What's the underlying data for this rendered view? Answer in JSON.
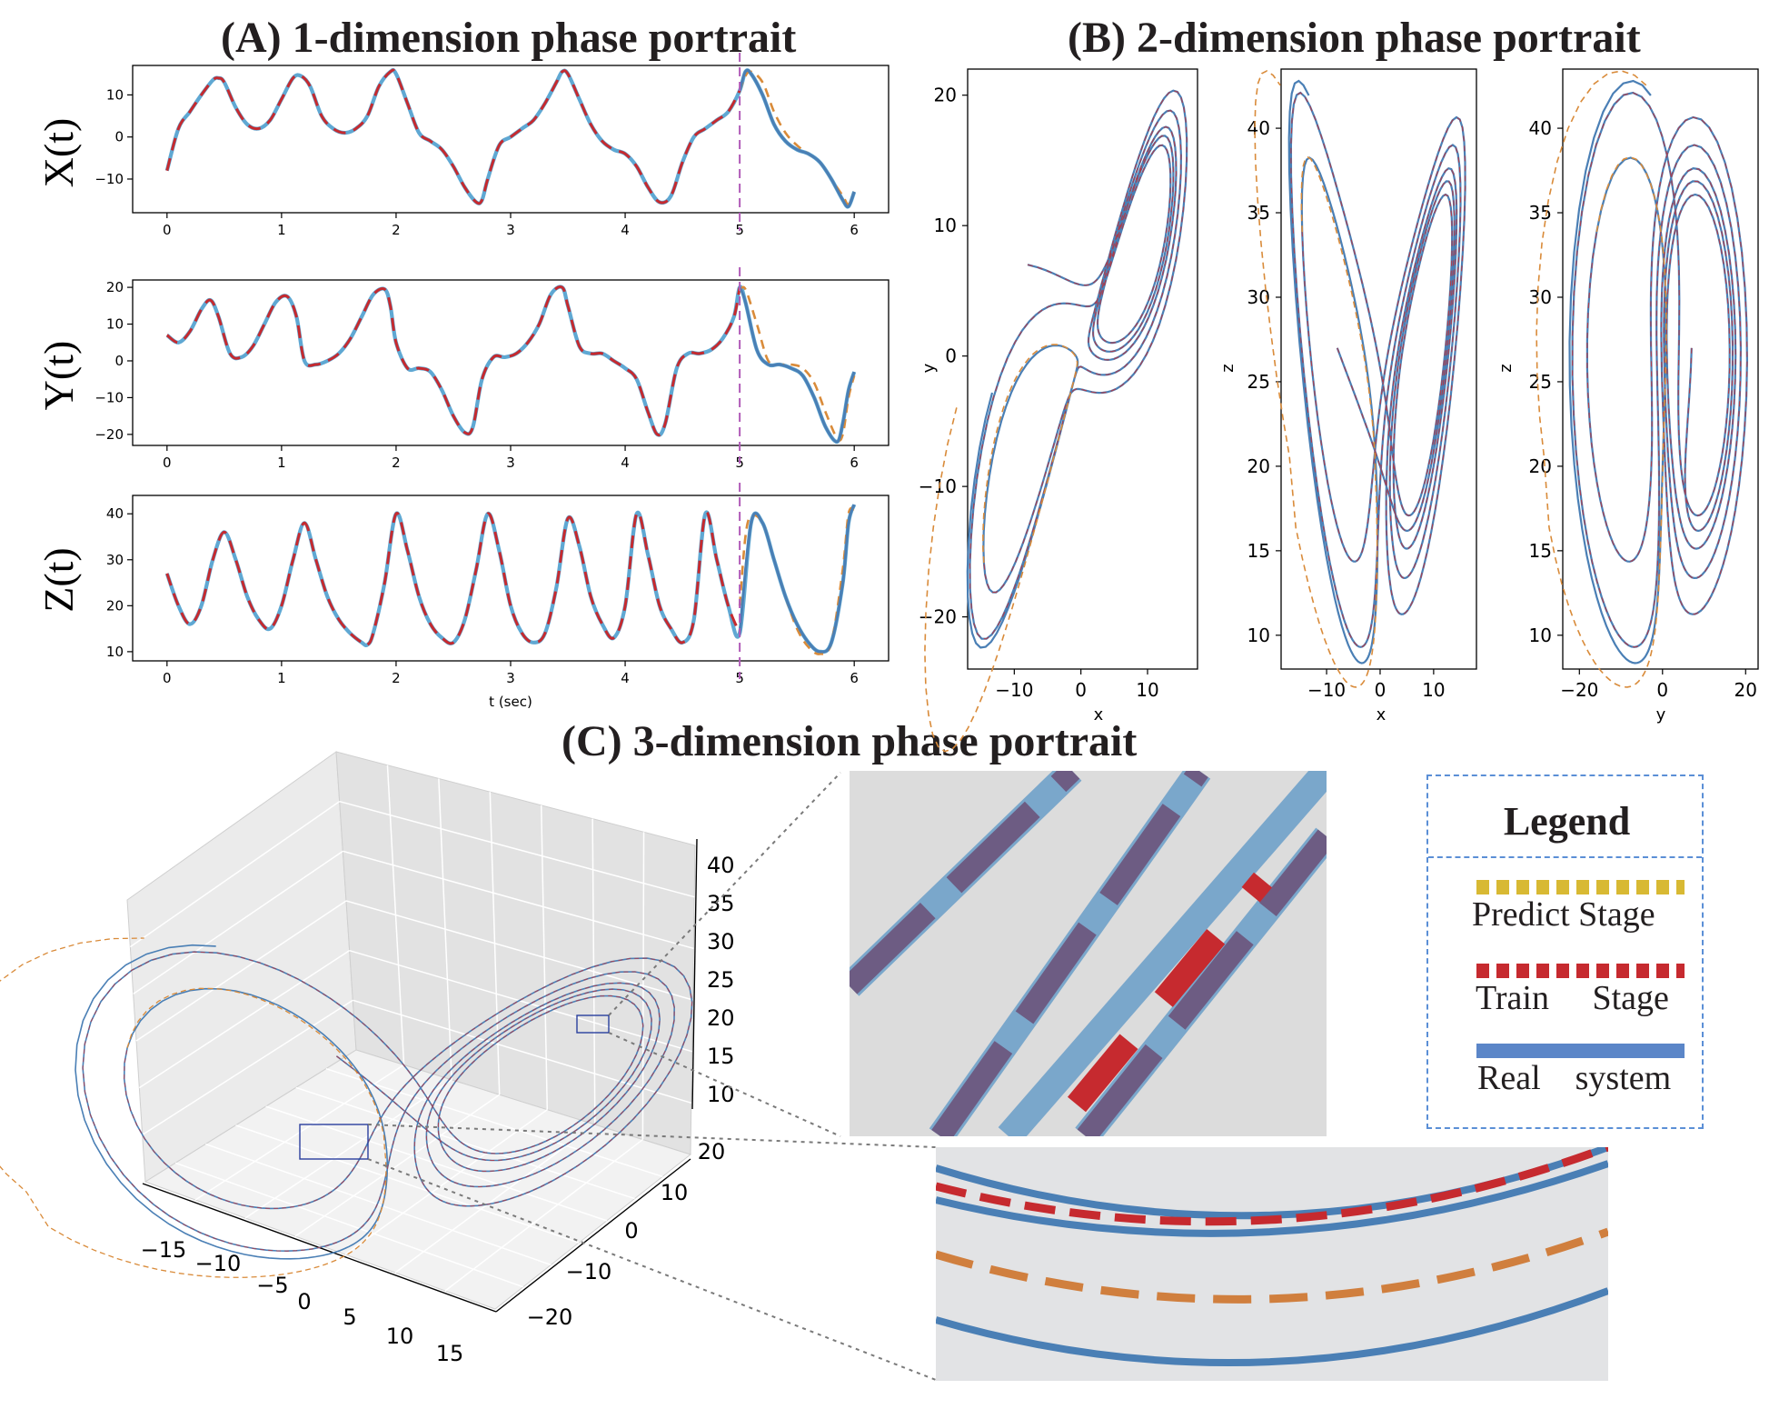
{
  "titles": {
    "a": "(A) 1-dimension phase portrait",
    "b": "(B) 2-dimension phase portrait",
    "c": "(C) 3-dimension phase portrait"
  },
  "colors": {
    "real": "#4a7fb5",
    "real_light": "#5fa8d3",
    "train": "#c62a2f",
    "predict": "#d98b3a",
    "boundary": "#b05ab8",
    "legend_predict": "#d8b933",
    "legend_real": "#5b86c8"
  },
  "chart_data": [
    {
      "id": "x_time",
      "type": "line",
      "ylabel": "X(t)",
      "xlabel": "",
      "xlim": [
        -0.3,
        6.3
      ],
      "ylim": [
        -18,
        17
      ],
      "xticks": [
        "0",
        "1",
        "2",
        "3",
        "4",
        "5",
        "6"
      ],
      "yticks": [
        "10",
        "0",
        "−10"
      ],
      "train_predict_boundary": 5,
      "series": [
        {
          "role": "real",
          "x": [
            0,
            0.1,
            0.2,
            0.3,
            0.4,
            0.45,
            0.5,
            0.6,
            0.7,
            0.8,
            0.9,
            1.0,
            1.1,
            1.17,
            1.25,
            1.35,
            1.45,
            1.55,
            1.65,
            1.75,
            1.85,
            1.95,
            2.0,
            2.1,
            2.2,
            2.3,
            2.4,
            2.5,
            2.6,
            2.7,
            2.75,
            2.8,
            2.9,
            3.0,
            3.1,
            3.2,
            3.3,
            3.4,
            3.45,
            3.5,
            3.6,
            3.7,
            3.8,
            3.9,
            4.0,
            4.1,
            4.2,
            4.3,
            4.4,
            4.5,
            4.6,
            4.7,
            4.8,
            4.9,
            5.0,
            5.05,
            5.1,
            5.2,
            5.3,
            5.4,
            5.5,
            5.6,
            5.7,
            5.8,
            5.9,
            5.95,
            6.0
          ],
          "y": [
            -8,
            2,
            6,
            10,
            13.5,
            14,
            13,
            7,
            3,
            2,
            4,
            9,
            14,
            14.5,
            12,
            5,
            2,
            1,
            2,
            5,
            12,
            15.5,
            15,
            8,
            1,
            -1,
            -3,
            -7,
            -12,
            -15.5,
            -15,
            -10,
            -2,
            0,
            2,
            4,
            8,
            13,
            15.5,
            15,
            9,
            3,
            -1,
            -3,
            -4,
            -7,
            -12,
            -15.5,
            -14,
            -6,
            0,
            2,
            4,
            6,
            11,
            15.5,
            15,
            10,
            3,
            -1,
            -3,
            -4,
            -6,
            -10,
            -15,
            -16.5,
            -13
          ]
        },
        {
          "role": "predict",
          "x": [
            5.0,
            5.05,
            5.1,
            5.2,
            5.3,
            5.4,
            5.5,
            5.6,
            5.7,
            5.8,
            5.9,
            5.95,
            6.0
          ],
          "y": [
            11,
            14.5,
            15.5,
            13,
            6,
            1,
            -2,
            -4,
            -6,
            -10,
            -14,
            -16,
            -13
          ]
        }
      ]
    },
    {
      "id": "y_time",
      "type": "line",
      "ylabel": "Y(t)",
      "xlabel": "",
      "xlim": [
        -0.3,
        6.3
      ],
      "ylim": [
        -23,
        22
      ],
      "xticks": [
        "0",
        "1",
        "2",
        "3",
        "4",
        "5",
        "6"
      ],
      "yticks": [
        "20",
        "10",
        "0",
        "−10",
        "−20"
      ],
      "train_predict_boundary": 5,
      "series": [
        {
          "role": "real",
          "x": [
            0,
            0.1,
            0.2,
            0.3,
            0.38,
            0.45,
            0.55,
            0.65,
            0.75,
            0.85,
            0.95,
            1.05,
            1.13,
            1.2,
            1.3,
            1.4,
            1.5,
            1.6,
            1.7,
            1.8,
            1.9,
            1.95,
            2.0,
            2.1,
            2.2,
            2.3,
            2.4,
            2.5,
            2.6,
            2.67,
            2.75,
            2.85,
            2.95,
            3.05,
            3.15,
            3.25,
            3.35,
            3.45,
            3.5,
            3.6,
            3.7,
            3.8,
            3.9,
            4.0,
            4.1,
            4.2,
            4.28,
            4.35,
            4.45,
            4.55,
            4.65,
            4.75,
            4.85,
            4.95,
            5.0,
            5.05,
            5.15,
            5.25,
            5.35,
            5.45,
            5.55,
            5.65,
            5.75,
            5.85,
            5.9,
            5.95,
            6.0
          ],
          "y": [
            7,
            5,
            8,
            14,
            16.5,
            12,
            2,
            1,
            4,
            10,
            16,
            17.5,
            12,
            0,
            -1,
            0,
            2,
            6,
            12,
            18,
            19.5,
            15,
            5,
            -2,
            -2,
            -3,
            -8,
            -15,
            -19.5,
            -18,
            -5,
            1,
            1,
            2,
            5,
            10,
            18,
            20,
            15,
            4,
            2,
            2,
            0,
            -2,
            -5,
            -14,
            -20,
            -17,
            -2,
            2,
            2,
            3,
            6,
            12,
            20,
            16,
            3,
            -1,
            -1,
            -2,
            -4,
            -10,
            -18,
            -22,
            -17,
            -8,
            -3
          ]
        },
        {
          "role": "predict",
          "x": [
            5.0,
            5.05,
            5.15,
            5.25,
            5.35,
            5.45,
            5.55,
            5.65,
            5.75,
            5.85,
            5.9,
            5.95,
            6.0
          ],
          "y": [
            19,
            19.5,
            10,
            0,
            -1,
            -1,
            -2,
            -6,
            -14,
            -21,
            -20,
            -10,
            -4
          ]
        }
      ]
    },
    {
      "id": "z_time",
      "type": "line",
      "ylabel": "Z(t)",
      "xlabel": "t (sec)",
      "xlim": [
        -0.3,
        6.3
      ],
      "ylim": [
        8,
        44
      ],
      "xticks": [
        "0",
        "1",
        "2",
        "3",
        "4",
        "5",
        "6"
      ],
      "yticks": [
        "40",
        "30",
        "20",
        "10"
      ],
      "train_predict_boundary": 5,
      "series": [
        {
          "role": "real",
          "x": [
            0,
            0.1,
            0.2,
            0.3,
            0.4,
            0.5,
            0.6,
            0.7,
            0.8,
            0.9,
            1.0,
            1.1,
            1.2,
            1.3,
            1.4,
            1.5,
            1.6,
            1.7,
            1.75,
            1.8,
            1.9,
            2.0,
            2.1,
            2.2,
            2.3,
            2.4,
            2.5,
            2.6,
            2.7,
            2.8,
            2.9,
            3.0,
            3.1,
            3.2,
            3.3,
            3.4,
            3.5,
            3.6,
            3.7,
            3.8,
            3.9,
            4.0,
            4.1,
            4.2,
            4.3,
            4.4,
            4.5,
            4.6,
            4.7,
            4.8,
            4.9,
            5.0,
            5.1,
            5.2,
            5.3,
            5.4,
            5.5,
            5.6,
            5.7,
            5.8,
            5.9,
            5.95,
            6.0
          ],
          "y": [
            27,
            20,
            16,
            20,
            30,
            36,
            30,
            22,
            17,
            15,
            20,
            30,
            38,
            30,
            22,
            17,
            14,
            12,
            11.5,
            14,
            25,
            40,
            32,
            22,
            16,
            13,
            12,
            17,
            28,
            40,
            32,
            20,
            14,
            12,
            14,
            24,
            39,
            33,
            22,
            16,
            13,
            20,
            40,
            31,
            20,
            15,
            12,
            17,
            40,
            30,
            20,
            14,
            38,
            38,
            30,
            22,
            16,
            12,
            10,
            12,
            25,
            38,
            42
          ]
        },
        {
          "role": "predict",
          "x": [
            5.0,
            5.05,
            5.1,
            5.2,
            5.3,
            5.4,
            5.5,
            5.6,
            5.7,
            5.8,
            5.9,
            5.95,
            6.0
          ],
          "y": [
            20,
            35,
            39.5,
            38,
            30,
            22,
            15,
            11,
            9.5,
            12,
            28,
            40,
            41
          ]
        }
      ]
    },
    {
      "id": "xy_phase",
      "type": "line",
      "xlabel": "x",
      "ylabel": "y",
      "xlim": [
        -17,
        17.5
      ],
      "ylim": [
        -24,
        22
      ],
      "xticks": [
        "−10",
        "0",
        "10"
      ],
      "yticks": [
        "20",
        "10",
        "0",
        "−10",
        "−20"
      ]
    },
    {
      "id": "xz_phase",
      "type": "line",
      "xlabel": "x",
      "ylabel": "z",
      "xlim": [
        -18.5,
        18
      ],
      "ylim": [
        8,
        43.5
      ],
      "xticks": [
        "−10",
        "0",
        "10"
      ],
      "yticks": [
        "40",
        "35",
        "30",
        "25",
        "20",
        "15",
        "10"
      ]
    },
    {
      "id": "yz_phase",
      "type": "line",
      "xlabel": "y",
      "ylabel": "z",
      "xlim": [
        -24,
        23
      ],
      "ylim": [
        8,
        43.5
      ],
      "xticks": [
        "−20",
        "0",
        "20"
      ],
      "yticks": [
        "40",
        "35",
        "30",
        "25",
        "20",
        "15",
        "10"
      ]
    },
    {
      "id": "xyz_phase",
      "type": "line",
      "xlabel": "",
      "ylabel": "",
      "xticks": [
        "−15",
        "−10",
        "−5",
        "0",
        "5",
        "10",
        "15"
      ],
      "yticks": [
        "20",
        "10",
        "0",
        "−10",
        "−20"
      ],
      "zticks": [
        "40",
        "35",
        "30",
        "25",
        "20",
        "15",
        "10"
      ]
    }
  ],
  "legend": {
    "title": "Legend",
    "items": [
      {
        "label": "Predict Stage",
        "style": "dotted",
        "color": "#d8b933"
      },
      {
        "label": "Train     Stage",
        "style": "dotted",
        "color": "#c62a2f"
      },
      {
        "label": "Real    system",
        "style": "solid",
        "color": "#5b86c8"
      }
    ]
  }
}
